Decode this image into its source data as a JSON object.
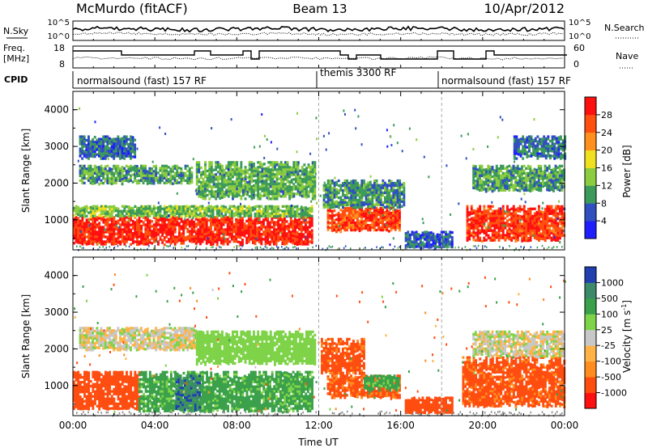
{
  "header": {
    "station": "McMurdo (fitACF)",
    "beam": "Beam 13",
    "date": "10/Apr/2012"
  },
  "top_panels": {
    "nsky_label": "N.Sky",
    "nsearch_label": "N.Search",
    "noise_ticks_left": [
      "10^5",
      "10^0"
    ],
    "noise_ticks_right": [
      "10^5",
      "10^0"
    ],
    "freq_label_line1": "Freq.",
    "freq_label_line2": "[MHz]",
    "freq_ticks": [
      "18",
      "8"
    ],
    "nave_label": "Nave",
    "nave_ticks": [
      "60",
      "0"
    ],
    "cpid_label": "CPID",
    "cpid_segments": [
      {
        "text": "normalsound (fast) 157 RF",
        "start_hour": 0
      },
      {
        "text": "themis 3300 RF",
        "start_hour": 12
      },
      {
        "text": "normalsound (fast) 157 RF",
        "start_hour": 18
      }
    ]
  },
  "colors": {
    "power": [
      "#1e1eff",
      "#3050c0",
      "#3c9a5a",
      "#8ccc40",
      "#f0e020",
      "#ff9020",
      "#ff5010",
      "#ff1010"
    ],
    "velocity": [
      "#ff1010",
      "#ff4d10",
      "#ff8c1e",
      "#ffb347",
      "#c8c8c8",
      "#7ed348",
      "#3aa04a",
      "#3d8a6a",
      "#2040b0"
    ]
  },
  "chart_data": [
    {
      "type": "heatmap",
      "panel": "power",
      "title": "McMurdo (fitACF) Beam 13 10/Apr/2012",
      "xlabel": "Time UT",
      "ylabel": "Slant Range [km]",
      "xlim": [
        0,
        24
      ],
      "ylim": [
        180,
        4500
      ],
      "x_ticks": [
        "00:00",
        "04:00",
        "08:00",
        "12:00",
        "16:00",
        "20:00",
        "00:00"
      ],
      "y_ticks": [
        1000,
        2000,
        3000,
        4000
      ],
      "colorbar": {
        "label": "Power [dB]",
        "ticks": [
          4,
          8,
          12,
          16,
          20,
          24,
          28
        ],
        "range": [
          0,
          30
        ]
      },
      "bands": [
        {
          "t0": 0.0,
          "t1": 11.7,
          "r0": 350,
          "r1": 1100,
          "power": 27
        },
        {
          "t0": 0.0,
          "t1": 11.7,
          "r0": 1100,
          "r1": 1400,
          "power": 12
        },
        {
          "t0": 0.3,
          "t1": 5.8,
          "r0": 2000,
          "r1": 2500,
          "power": 10
        },
        {
          "t0": 0.3,
          "t1": 3.0,
          "r0": 2700,
          "r1": 3300,
          "power": 7
        },
        {
          "t0": 6.0,
          "t1": 11.8,
          "r0": 1600,
          "r1": 2600,
          "power": 11
        },
        {
          "t0": 12.4,
          "t1": 15.9,
          "r0": 700,
          "r1": 1350,
          "power": 25
        },
        {
          "t0": 12.2,
          "t1": 16.2,
          "r0": 1350,
          "r1": 2100,
          "power": 9
        },
        {
          "t0": 16.2,
          "t1": 18.5,
          "r0": 250,
          "r1": 700,
          "power": 6
        },
        {
          "t0": 19.2,
          "t1": 24.0,
          "r0": 450,
          "r1": 1400,
          "power": 26
        },
        {
          "t0": 19.5,
          "t1": 24.0,
          "r0": 1800,
          "r1": 2500,
          "power": 10
        },
        {
          "t0": 21.5,
          "t1": 24.0,
          "r0": 2700,
          "r1": 3300,
          "power": 7
        }
      ]
    },
    {
      "type": "heatmap",
      "panel": "velocity",
      "xlabel": "Time UT",
      "ylabel": "Slant Range [km]",
      "xlim": [
        0,
        24
      ],
      "ylim": [
        180,
        4500
      ],
      "x_ticks": [
        "00:00",
        "04:00",
        "08:00",
        "12:00",
        "16:00",
        "20:00",
        "00:00"
      ],
      "y_ticks": [
        1000,
        2000,
        3000,
        4000
      ],
      "colorbar": {
        "label": "Velocity [m s^-1]",
        "ticks": [
          "1000",
          "500",
          "100",
          "25",
          "-25",
          "-100",
          "-500",
          "-1000"
        ]
      },
      "bands": [
        {
          "t0": 0.0,
          "t1": 3.2,
          "r0": 350,
          "r1": 1400,
          "velocity": -200
        },
        {
          "t0": 3.2,
          "t1": 11.7,
          "r0": 300,
          "r1": 1400,
          "velocity": 150
        },
        {
          "t0": 5.0,
          "t1": 6.2,
          "r0": 350,
          "r1": 1300,
          "velocity": 800
        },
        {
          "t0": 0.3,
          "t1": 6.0,
          "r0": 2000,
          "r1": 2600,
          "velocity": 10
        },
        {
          "t0": 6.0,
          "t1": 11.8,
          "r0": 1600,
          "r1": 2500,
          "velocity": 60
        },
        {
          "t0": 12.1,
          "t1": 14.2,
          "r0": 1300,
          "r1": 2300,
          "velocity": -150
        },
        {
          "t0": 12.4,
          "t1": 15.9,
          "r0": 700,
          "r1": 1300,
          "velocity": -120
        },
        {
          "t0": 14.2,
          "t1": 15.9,
          "r0": 900,
          "r1": 1300,
          "velocity": 150
        },
        {
          "t0": 16.2,
          "t1": 18.5,
          "r0": 250,
          "r1": 700,
          "velocity": -300
        },
        {
          "t0": 19.0,
          "t1": 24.0,
          "r0": 450,
          "r1": 1800,
          "velocity": -150
        },
        {
          "t0": 19.5,
          "t1": 24.0,
          "r0": 1800,
          "r1": 2500,
          "velocity": 10
        }
      ]
    }
  ]
}
